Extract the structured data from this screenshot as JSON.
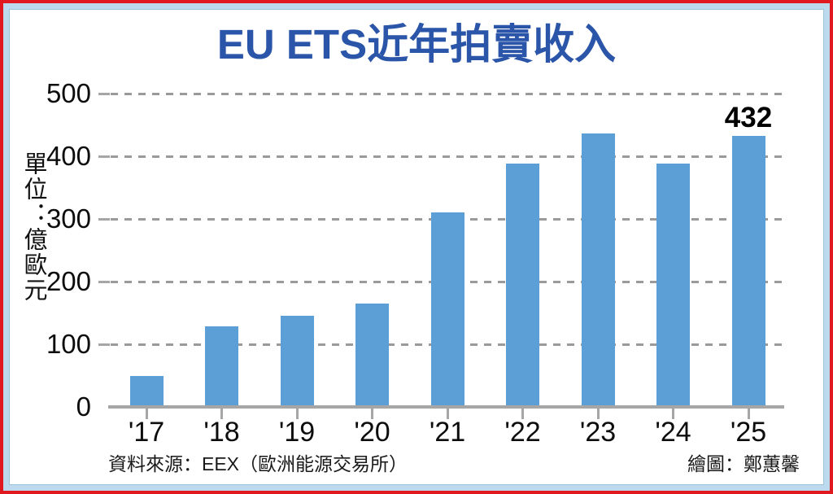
{
  "title": "EU ETS近年拍賣收入",
  "y_axis": {
    "unit_label": "單位：億歐元",
    "tick_labels": [
      "500",
      "400",
      "300",
      "200",
      "100",
      "0"
    ]
  },
  "footer": {
    "source": "資料來源：EEX（歐洲能源交易所）",
    "credit": "繪圖：鄭蕙馨"
  },
  "colors": {
    "bar": "#5b9fd6",
    "title": "#2b55a8",
    "outer_border": "#e01820",
    "frame": "#bdd9ed",
    "axis": "#a6a6a6",
    "grid": "#9a9a9a"
  },
  "chart_data": {
    "type": "bar",
    "title": "EU ETS近年拍賣收入",
    "ylabel": "單位：億歐元",
    "xlabel": "",
    "categories": [
      "'17",
      "'18",
      "'19",
      "'20",
      "'21",
      "'22",
      "'23",
      "'24",
      "'25"
    ],
    "values": [
      50,
      128,
      146,
      165,
      310,
      388,
      436,
      388,
      432
    ],
    "value_labels": [
      {
        "category": "'25",
        "text": "432"
      }
    ],
    "ylim": [
      0,
      500
    ],
    "yticks": [
      500,
      400,
      300,
      200,
      100,
      0
    ],
    "grid": "horizontal-dashed",
    "legend": "none"
  }
}
